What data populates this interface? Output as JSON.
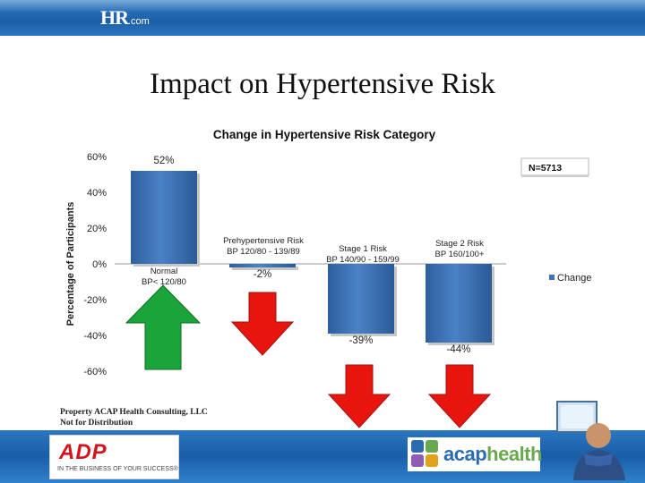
{
  "header": {
    "logo_main": "HR",
    "logo_suffix": ".com"
  },
  "slide_title": "Impact on Hypertensive Risk",
  "chart_data": {
    "type": "bar",
    "title": "Change in Hypertensive Risk Category",
    "ylabel": "Percentage of Participants",
    "xlabel": "",
    "ylim": [
      -60,
      60
    ],
    "yticks": [
      60,
      40,
      20,
      0,
      -20,
      -40,
      -60
    ],
    "ytick_labels": [
      "60%",
      "40%",
      "20%",
      "0%",
      "-20%",
      "-40%",
      "-60%"
    ],
    "categories": [
      "Normal BP< 120/80",
      "Prehypertensive Risk BP 120/80 - 139/89",
      "Stage 1 Risk BP 140/90 - 159/99",
      "Stage 2 Risk BP 160/100+"
    ],
    "category_lines": [
      [
        "Normal",
        "BP< 120/80"
      ],
      [
        "Prehypertensive Risk",
        "BP 120/80 - 139/89"
      ],
      [
        "Stage 1 Risk",
        "BP 140/90 - 159/99"
      ],
      [
        "Stage 2 Risk",
        "BP 160/100+"
      ]
    ],
    "series": [
      {
        "name": "Change",
        "values": [
          52,
          -2,
          -39,
          -44
        ]
      }
    ],
    "value_labels": [
      "52%",
      "-2%",
      "-39%",
      "-44%"
    ],
    "legend": "Change",
    "legend_position": "right",
    "annotation": "N=5713",
    "grid": false
  },
  "arrows": [
    {
      "direction": "up",
      "color": "#1aa43a"
    },
    {
      "direction": "down",
      "color": "#e8140e"
    },
    {
      "direction": "down",
      "color": "#e8140e"
    },
    {
      "direction": "down",
      "color": "#e8140e"
    }
  ],
  "footer": {
    "line1": "Property ACAP Health Consulting, LLC",
    "line2": "Not for Distribution"
  },
  "logos": {
    "adp": "ADP",
    "adp_tagline": "IN THE BUSINESS OF YOUR SUCCESS®",
    "acap_part1": "acap",
    "acap_part2": "health"
  }
}
